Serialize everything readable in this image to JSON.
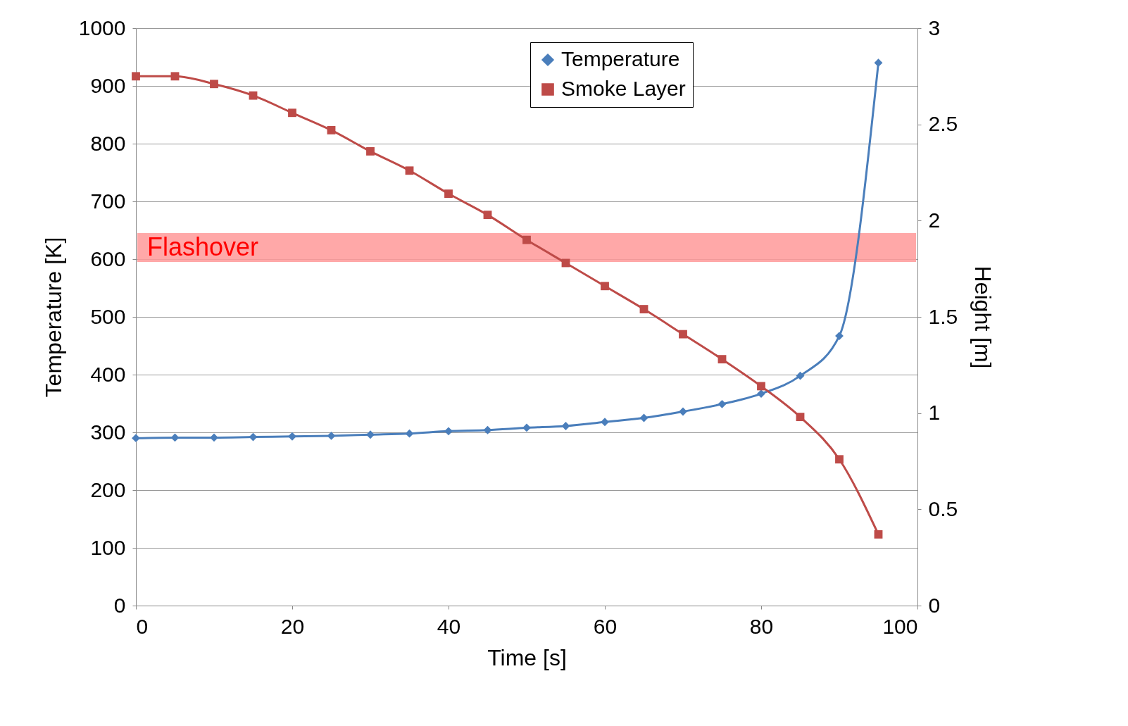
{
  "chart_data": {
    "type": "line",
    "xlabel": "Time [s]",
    "ylabel": "Temperature [K]",
    "y2label": "Height [m]",
    "x": [
      0,
      5,
      10,
      15,
      20,
      25,
      30,
      35,
      40,
      45,
      50,
      55,
      60,
      65,
      70,
      75,
      80,
      85,
      90,
      95
    ],
    "series": [
      {
        "name": "Temperature",
        "color": "#4a7ebb",
        "marker": "diamond",
        "values": [
          290,
          291,
          291,
          292,
          293,
          294,
          296,
          298,
          302,
          304,
          308,
          311,
          318,
          325,
          336,
          349,
          367,
          398,
          467,
          940
        ]
      },
      {
        "name": "Smoke Layer",
        "color": "#be4b48",
        "marker": "square",
        "axis": "y2",
        "values": [
          2.75,
          2.75,
          2.71,
          2.65,
          2.56,
          2.47,
          2.36,
          2.26,
          2.14,
          2.03,
          1.9,
          1.78,
          1.66,
          1.54,
          1.41,
          1.28,
          1.14,
          0.98,
          0.76,
          0.37
        ]
      }
    ],
    "xlim": [
      0,
      100
    ],
    "xticks": [
      0,
      20,
      40,
      60,
      80,
      100
    ],
    "ylim": [
      0,
      1000
    ],
    "yticks": [
      0,
      100,
      200,
      300,
      400,
      500,
      600,
      700,
      800,
      900,
      1000
    ],
    "y2lim": [
      0,
      3
    ],
    "y2ticks": [
      0,
      0.5,
      1,
      1.5,
      2,
      2.5,
      3
    ],
    "bands": [
      {
        "axis": "y",
        "from": 595,
        "to": 645,
        "label": "Flashover",
        "color": "#ff9999"
      }
    ],
    "grid": "y",
    "legend": "top",
    "line_style": "solid"
  }
}
